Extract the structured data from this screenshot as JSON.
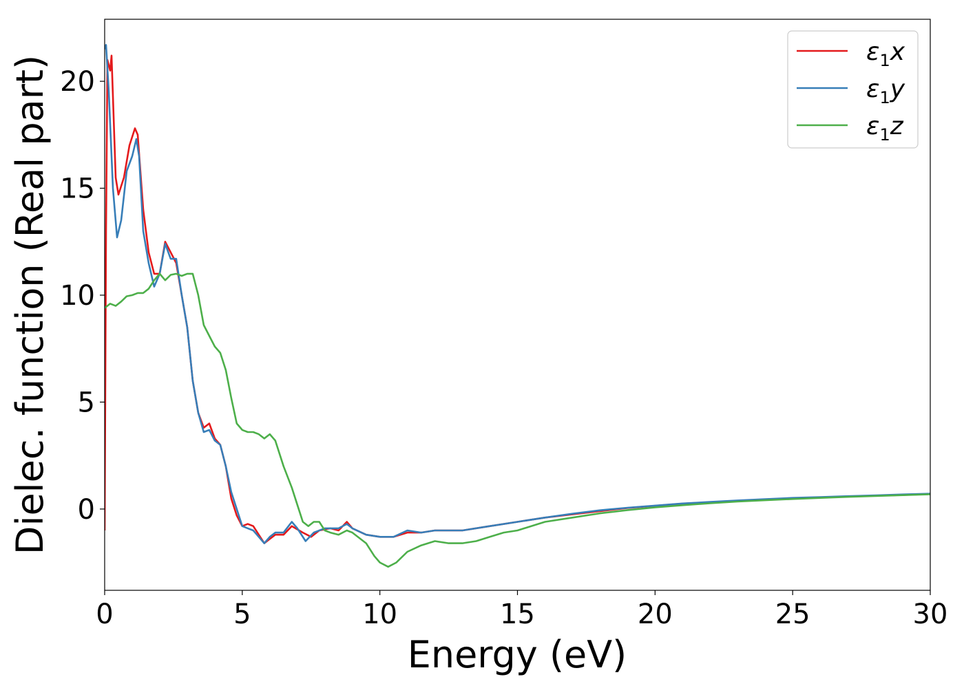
{
  "chart_data": {
    "type": "line",
    "title": "",
    "xlabel": "Energy (eV)",
    "ylabel": "Dielec. function (Real part)",
    "xlim": [
      0,
      30
    ],
    "ylim": [
      -3.8,
      22.9
    ],
    "xticks": [
      0,
      5,
      10,
      15,
      20,
      25,
      30
    ],
    "yticks": [
      0,
      5,
      10,
      15,
      20
    ],
    "grid": false,
    "legend_position": "top-right",
    "series": [
      {
        "name": "ε₁x",
        "label_base": "ε",
        "label_sub": "1",
        "label_tail": "x",
        "color": "#e41a1c",
        "points": [
          [
            0,
            -1
          ],
          [
            0.05,
            13
          ],
          [
            0.1,
            21
          ],
          [
            0.2,
            20.5
          ],
          [
            0.25,
            21.2
          ],
          [
            0.4,
            15.5
          ],
          [
            0.5,
            14.7
          ],
          [
            0.7,
            15.5
          ],
          [
            0.9,
            17
          ],
          [
            1.1,
            17.8
          ],
          [
            1.2,
            17.5
          ],
          [
            1.4,
            14
          ],
          [
            1.6,
            12
          ],
          [
            1.8,
            11
          ],
          [
            2.0,
            11
          ],
          [
            2.2,
            12.5
          ],
          [
            2.4,
            12
          ],
          [
            2.6,
            11.5
          ],
          [
            2.8,
            10
          ],
          [
            3.0,
            8.5
          ],
          [
            3.2,
            6
          ],
          [
            3.4,
            4.5
          ],
          [
            3.6,
            3.8
          ],
          [
            3.8,
            4
          ],
          [
            4.0,
            3.3
          ],
          [
            4.2,
            3
          ],
          [
            4.4,
            2
          ],
          [
            4.6,
            0.5
          ],
          [
            4.8,
            -0.3
          ],
          [
            5.0,
            -0.8
          ],
          [
            5.2,
            -0.7
          ],
          [
            5.4,
            -0.8
          ],
          [
            5.6,
            -1.2
          ],
          [
            5.8,
            -1.6
          ],
          [
            6.0,
            -1.4
          ],
          [
            6.2,
            -1.2
          ],
          [
            6.5,
            -1.2
          ],
          [
            6.8,
            -0.8
          ],
          [
            7.2,
            -1.1
          ],
          [
            7.5,
            -1.3
          ],
          [
            7.8,
            -1.0
          ],
          [
            8.2,
            -0.9
          ],
          [
            8.5,
            -1.0
          ],
          [
            8.8,
            -0.6
          ],
          [
            9.0,
            -0.9
          ],
          [
            9.5,
            -1.2
          ],
          [
            10.0,
            -1.3
          ],
          [
            10.5,
            -1.3
          ],
          [
            11.0,
            -1.1
          ],
          [
            11.5,
            -1.1
          ],
          [
            12.0,
            -1.0
          ],
          [
            12.5,
            -1.0
          ],
          [
            13.0,
            -1.0
          ],
          [
            14.0,
            -0.8
          ],
          [
            15.0,
            -0.6
          ],
          [
            16.0,
            -0.4
          ],
          [
            17.0,
            -0.25
          ],
          [
            18.0,
            -0.1
          ],
          [
            19.0,
            0.05
          ],
          [
            20.0,
            0.15
          ],
          [
            21.0,
            0.25
          ],
          [
            22.0,
            0.32
          ],
          [
            23.0,
            0.38
          ],
          [
            24.0,
            0.44
          ],
          [
            25.0,
            0.5
          ],
          [
            26.0,
            0.54
          ],
          [
            27.0,
            0.58
          ],
          [
            28.0,
            0.62
          ],
          [
            29.0,
            0.66
          ],
          [
            30.0,
            0.7
          ]
        ]
      },
      {
        "name": "ε₁y",
        "label_base": "ε",
        "label_sub": "1",
        "label_tail": "y",
        "color": "#377eb8",
        "points": [
          [
            0,
            21.5
          ],
          [
            0.05,
            21.7
          ],
          [
            0.15,
            19.5
          ],
          [
            0.3,
            15
          ],
          [
            0.45,
            12.7
          ],
          [
            0.6,
            13.5
          ],
          [
            0.8,
            15.8
          ],
          [
            1.0,
            16.5
          ],
          [
            1.15,
            17.3
          ],
          [
            1.25,
            16.5
          ],
          [
            1.4,
            13
          ],
          [
            1.6,
            11.5
          ],
          [
            1.8,
            10.4
          ],
          [
            2.0,
            11
          ],
          [
            2.2,
            12.4
          ],
          [
            2.4,
            11.7
          ],
          [
            2.6,
            11.7
          ],
          [
            2.8,
            10
          ],
          [
            3.0,
            8.5
          ],
          [
            3.2,
            6
          ],
          [
            3.4,
            4.5
          ],
          [
            3.6,
            3.6
          ],
          [
            3.8,
            3.7
          ],
          [
            4.0,
            3.2
          ],
          [
            4.2,
            3
          ],
          [
            4.4,
            2
          ],
          [
            4.6,
            0.8
          ],
          [
            4.8,
            0
          ],
          [
            5.0,
            -0.8
          ],
          [
            5.2,
            -0.9
          ],
          [
            5.4,
            -1.0
          ],
          [
            5.6,
            -1.3
          ],
          [
            5.8,
            -1.6
          ],
          [
            6.0,
            -1.3
          ],
          [
            6.2,
            -1.1
          ],
          [
            6.5,
            -1.1
          ],
          [
            6.8,
            -0.6
          ],
          [
            7.0,
            -0.9
          ],
          [
            7.3,
            -1.5
          ],
          [
            7.6,
            -1.1
          ],
          [
            8.0,
            -0.9
          ],
          [
            8.5,
            -0.9
          ],
          [
            8.8,
            -0.7
          ],
          [
            9.0,
            -0.9
          ],
          [
            9.5,
            -1.2
          ],
          [
            10.0,
            -1.3
          ],
          [
            10.5,
            -1.3
          ],
          [
            11.0,
            -1.0
          ],
          [
            11.5,
            -1.1
          ],
          [
            12.0,
            -1.0
          ],
          [
            12.5,
            -1.0
          ],
          [
            13.0,
            -1.0
          ],
          [
            14.0,
            -0.8
          ],
          [
            15.0,
            -0.6
          ],
          [
            16.0,
            -0.4
          ],
          [
            17.0,
            -0.22
          ],
          [
            18.0,
            -0.06
          ],
          [
            19.0,
            0.06
          ],
          [
            20.0,
            0.16
          ],
          [
            21.0,
            0.26
          ],
          [
            22.0,
            0.33
          ],
          [
            23.0,
            0.4
          ],
          [
            24.0,
            0.46
          ],
          [
            25.0,
            0.52
          ],
          [
            26.0,
            0.56
          ],
          [
            27.0,
            0.6
          ],
          [
            28.0,
            0.64
          ],
          [
            29.0,
            0.68
          ],
          [
            30.0,
            0.72
          ]
        ]
      },
      {
        "name": "ε₁z",
        "label_base": "ε",
        "label_sub": "1",
        "label_tail": "z",
        "color": "#4daf4a",
        "points": [
          [
            0,
            9.4
          ],
          [
            0.2,
            9.6
          ],
          [
            0.4,
            9.5
          ],
          [
            0.6,
            9.7
          ],
          [
            0.8,
            9.95
          ],
          [
            1.0,
            10.0
          ],
          [
            1.2,
            10.1
          ],
          [
            1.4,
            10.1
          ],
          [
            1.6,
            10.3
          ],
          [
            1.8,
            10.7
          ],
          [
            2.0,
            11.0
          ],
          [
            2.2,
            10.7
          ],
          [
            2.4,
            10.95
          ],
          [
            2.6,
            11.0
          ],
          [
            2.8,
            10.9
          ],
          [
            3.0,
            11.0
          ],
          [
            3.2,
            11.0
          ],
          [
            3.4,
            10
          ],
          [
            3.6,
            8.6
          ],
          [
            3.8,
            8.1
          ],
          [
            4.0,
            7.6
          ],
          [
            4.2,
            7.3
          ],
          [
            4.4,
            6.5
          ],
          [
            4.6,
            5.2
          ],
          [
            4.8,
            4.0
          ],
          [
            5.0,
            3.7
          ],
          [
            5.2,
            3.6
          ],
          [
            5.4,
            3.6
          ],
          [
            5.6,
            3.5
          ],
          [
            5.8,
            3.3
          ],
          [
            6.0,
            3.5
          ],
          [
            6.2,
            3.2
          ],
          [
            6.5,
            2.0
          ],
          [
            6.8,
            1.0
          ],
          [
            7.0,
            0.2
          ],
          [
            7.2,
            -0.6
          ],
          [
            7.4,
            -0.8
          ],
          [
            7.6,
            -0.6
          ],
          [
            7.8,
            -0.6
          ],
          [
            8.0,
            -1.0
          ],
          [
            8.2,
            -1.1
          ],
          [
            8.5,
            -1.2
          ],
          [
            8.8,
            -1.0
          ],
          [
            9.0,
            -1.1
          ],
          [
            9.5,
            -1.6
          ],
          [
            9.8,
            -2.2
          ],
          [
            10.0,
            -2.5
          ],
          [
            10.3,
            -2.7
          ],
          [
            10.6,
            -2.5
          ],
          [
            11.0,
            -2.0
          ],
          [
            11.5,
            -1.7
          ],
          [
            12.0,
            -1.5
          ],
          [
            12.5,
            -1.6
          ],
          [
            13.0,
            -1.6
          ],
          [
            13.5,
            -1.5
          ],
          [
            14.0,
            -1.3
          ],
          [
            14.5,
            -1.1
          ],
          [
            15.0,
            -1.0
          ],
          [
            16.0,
            -0.6
          ],
          [
            17.0,
            -0.4
          ],
          [
            18.0,
            -0.2
          ],
          [
            19.0,
            -0.05
          ],
          [
            20.0,
            0.08
          ],
          [
            21.0,
            0.18
          ],
          [
            22.0,
            0.27
          ],
          [
            23.0,
            0.35
          ],
          [
            24.0,
            0.41
          ],
          [
            25.0,
            0.47
          ],
          [
            26.0,
            0.52
          ],
          [
            27.0,
            0.57
          ],
          [
            28.0,
            0.61
          ],
          [
            29.0,
            0.65
          ],
          [
            30.0,
            0.69
          ]
        ]
      }
    ]
  }
}
